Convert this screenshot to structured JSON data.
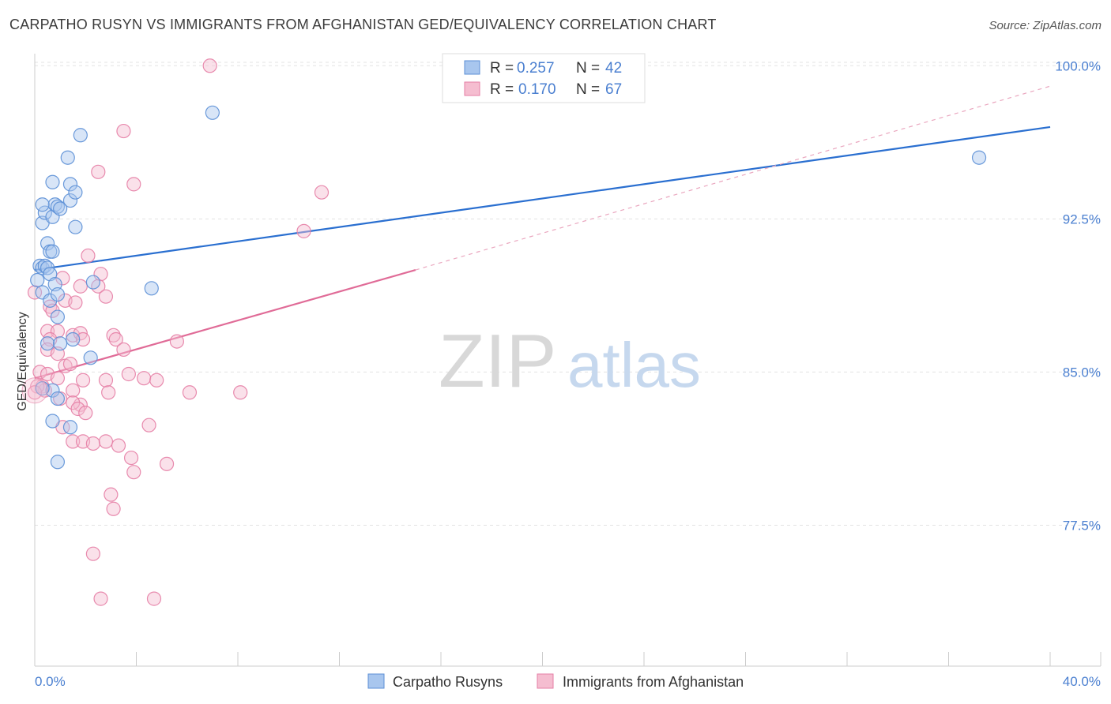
{
  "header": {
    "title": "CARPATHO RUSYN VS IMMIGRANTS FROM AFGHANISTAN GED/EQUIVALENCY CORRELATION CHART",
    "source": "Source: ZipAtlas.com"
  },
  "watermark": {
    "zip": "ZIP",
    "atlas": "atlas"
  },
  "colors": {
    "blue": "#5b8fd6",
    "blue_fill": "#a8c6ee",
    "blue_line": "#2a6fd0",
    "pink": "#e57ea5",
    "pink_fill": "#f5bdd0",
    "pink_line": "#e06b97",
    "axis_label": "#4a7fd0",
    "grid": "#e3e3e3"
  },
  "legend": {
    "rows": [
      {
        "r_label": "R = ",
        "r_value": "0.257",
        "n_label": "N = ",
        "n_value": "42"
      },
      {
        "r_label": "R = ",
        "r_value": "0.170",
        "n_label": "N = ",
        "n_value": "67"
      }
    ]
  },
  "bottom_legend": {
    "items": [
      "Carpatho Rusyns",
      "Immigrants from Afghanistan"
    ]
  },
  "chart_data": {
    "type": "scatter",
    "title": "CARPATHO RUSYN VS IMMIGRANTS FROM AFGHANISTAN GED/EQUIVALENCY CORRELATION CHART",
    "xlabel": "",
    "ylabel": "GED/Equivalency",
    "xlim": [
      0,
      40
    ],
    "ylim": [
      70.6,
      100.9
    ],
    "x_tick_labels": [
      "0.0%",
      "40.0%"
    ],
    "y_ticks": [
      77.5,
      85.0,
      92.5,
      100.0
    ],
    "y_tick_labels": [
      "77.5%",
      "85.0%",
      "92.5%",
      "100.0%"
    ],
    "grid": true,
    "legend_position": "top-center",
    "series": [
      {
        "name": "Carpatho Rusyns",
        "color": "blue",
        "r": 0.257,
        "n": 42,
        "trend": {
          "x0": 0,
          "y0": 90.0,
          "x1": 40,
          "y1": 97.0
        },
        "points": [
          [
            0.2,
            90.2
          ],
          [
            0.3,
            90.1
          ],
          [
            0.4,
            90.2
          ],
          [
            0.5,
            90.1
          ],
          [
            0.6,
            89.8
          ],
          [
            0.3,
            88.9
          ],
          [
            0.8,
            89.3
          ],
          [
            0.6,
            88.5
          ],
          [
            0.9,
            88.8
          ],
          [
            0.9,
            87.7
          ],
          [
            0.5,
            91.3
          ],
          [
            0.6,
            90.9
          ],
          [
            0.7,
            90.9
          ],
          [
            0.3,
            92.3
          ],
          [
            0.4,
            92.8
          ],
          [
            0.7,
            92.6
          ],
          [
            0.8,
            93.2
          ],
          [
            0.9,
            93.1
          ],
          [
            1.0,
            93.0
          ],
          [
            1.4,
            93.4
          ],
          [
            0.3,
            93.2
          ],
          [
            0.7,
            94.3
          ],
          [
            1.4,
            94.2
          ],
          [
            1.6,
            93.8
          ],
          [
            1.3,
            95.5
          ],
          [
            1.8,
            96.6
          ],
          [
            1.6,
            92.1
          ],
          [
            2.3,
            89.4
          ],
          [
            1.5,
            86.6
          ],
          [
            2.2,
            85.7
          ],
          [
            0.5,
            86.4
          ],
          [
            1.0,
            86.4
          ],
          [
            0.7,
            84.1
          ],
          [
            0.3,
            84.2
          ],
          [
            0.9,
            83.7
          ],
          [
            0.7,
            82.6
          ],
          [
            1.4,
            82.3
          ],
          [
            0.9,
            80.6
          ],
          [
            4.6,
            89.1
          ],
          [
            7.0,
            97.7
          ],
          [
            37.2,
            95.5
          ],
          [
            0.1,
            89.5
          ]
        ]
      },
      {
        "name": "Immigrants from Afghanistan",
        "color": "pink",
        "r": 0.17,
        "n": 67,
        "trend": {
          "x0": 0,
          "y0": 84.7,
          "x1": 15.0,
          "y1": 90.0
        },
        "trend_extension": {
          "x0": 15.0,
          "y0": 90.0,
          "x1": 40,
          "y1": 99.0
        },
        "points": [
          [
            6.9,
            100.0
          ],
          [
            3.5,
            96.8
          ],
          [
            2.5,
            94.8
          ],
          [
            3.9,
            94.2
          ],
          [
            11.3,
            93.8
          ],
          [
            10.6,
            91.9
          ],
          [
            2.1,
            90.7
          ],
          [
            2.6,
            89.8
          ],
          [
            1.1,
            89.6
          ],
          [
            2.5,
            89.2
          ],
          [
            1.8,
            89.2
          ],
          [
            2.8,
            88.7
          ],
          [
            1.2,
            88.5
          ],
          [
            0.6,
            88.2
          ],
          [
            0.7,
            88.0
          ],
          [
            0.5,
            87.0
          ],
          [
            0.9,
            87.0
          ],
          [
            1.5,
            86.8
          ],
          [
            1.8,
            86.9
          ],
          [
            1.9,
            86.6
          ],
          [
            3.1,
            86.8
          ],
          [
            3.2,
            86.6
          ],
          [
            5.6,
            86.5
          ],
          [
            0.6,
            86.6
          ],
          [
            0.5,
            86.1
          ],
          [
            0.9,
            85.9
          ],
          [
            3.5,
            86.1
          ],
          [
            1.2,
            85.3
          ],
          [
            1.4,
            85.4
          ],
          [
            0.2,
            85.0
          ],
          [
            0.5,
            84.9
          ],
          [
            0.9,
            84.7
          ],
          [
            1.9,
            84.6
          ],
          [
            2.8,
            84.6
          ],
          [
            3.7,
            84.9
          ],
          [
            4.3,
            84.7
          ],
          [
            4.8,
            84.6
          ],
          [
            0.3,
            84.3
          ],
          [
            0.4,
            84.1
          ],
          [
            0.1,
            84.3
          ],
          [
            1.5,
            84.1
          ],
          [
            2.9,
            84.0
          ],
          [
            6.1,
            84.0
          ],
          [
            8.1,
            84.0
          ],
          [
            0.0,
            84.0
          ],
          [
            1.8,
            83.4
          ],
          [
            1.5,
            83.5
          ],
          [
            1.7,
            83.2
          ],
          [
            2.0,
            83.0
          ],
          [
            1.0,
            83.7
          ],
          [
            4.5,
            82.4
          ],
          [
            1.1,
            82.3
          ],
          [
            1.5,
            81.6
          ],
          [
            1.9,
            81.6
          ],
          [
            2.3,
            81.5
          ],
          [
            2.8,
            81.6
          ],
          [
            3.3,
            81.4
          ],
          [
            3.8,
            80.8
          ],
          [
            5.2,
            80.5
          ],
          [
            3.9,
            80.1
          ],
          [
            3.0,
            79.0
          ],
          [
            3.1,
            78.3
          ],
          [
            2.3,
            76.1
          ],
          [
            2.6,
            73.9
          ],
          [
            4.7,
            73.9
          ],
          [
            0.0,
            88.9
          ],
          [
            1.6,
            88.4
          ]
        ]
      }
    ]
  }
}
